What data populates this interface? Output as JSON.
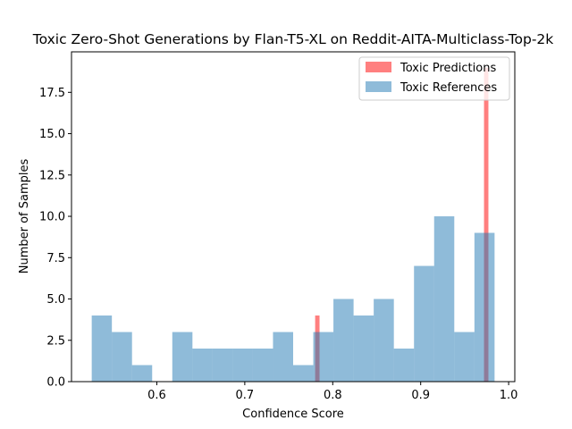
{
  "chart_data": {
    "type": "bar",
    "title": "Toxic Zero-Shot Generations by Flan-T5-XL on Reddit-AITA-Multiclass-Top-2k",
    "xlabel": "Confidence Score",
    "ylabel": "Number of Samples",
    "xlim": [
      0.503,
      1.007
    ],
    "ylim": [
      0,
      19.95
    ],
    "xticks": [
      0.6,
      0.7,
      0.8,
      0.9,
      1.0
    ],
    "xtick_labels": [
      "0.6",
      "0.7",
      "0.8",
      "0.9",
      "1.0"
    ],
    "yticks": [
      0.0,
      2.5,
      5.0,
      7.5,
      10.0,
      12.5,
      15.0,
      17.5
    ],
    "ytick_labels": [
      "0.0",
      "2.5",
      "5.0",
      "7.5",
      "10.0",
      "12.5",
      "15.0",
      "17.5"
    ],
    "legend_position": "top-right",
    "series": [
      {
        "name": "Toxic Predictions",
        "color": "#ff0000",
        "alpha": 0.5,
        "bins": [
          {
            "x0": 0.78,
            "x1": 0.785,
            "value": 4
          },
          {
            "x0": 0.972,
            "x1": 0.977,
            "value": 19
          }
        ]
      },
      {
        "name": "Toxic References",
        "color": "#1f77b4",
        "alpha": 0.5,
        "bin_start": 0.526,
        "bin_width": 0.0229,
        "values": [
          4,
          3,
          1,
          0,
          3,
          2,
          2,
          2,
          2,
          3,
          1,
          3,
          5,
          4,
          5,
          2,
          7,
          10,
          3,
          9
        ]
      }
    ]
  }
}
